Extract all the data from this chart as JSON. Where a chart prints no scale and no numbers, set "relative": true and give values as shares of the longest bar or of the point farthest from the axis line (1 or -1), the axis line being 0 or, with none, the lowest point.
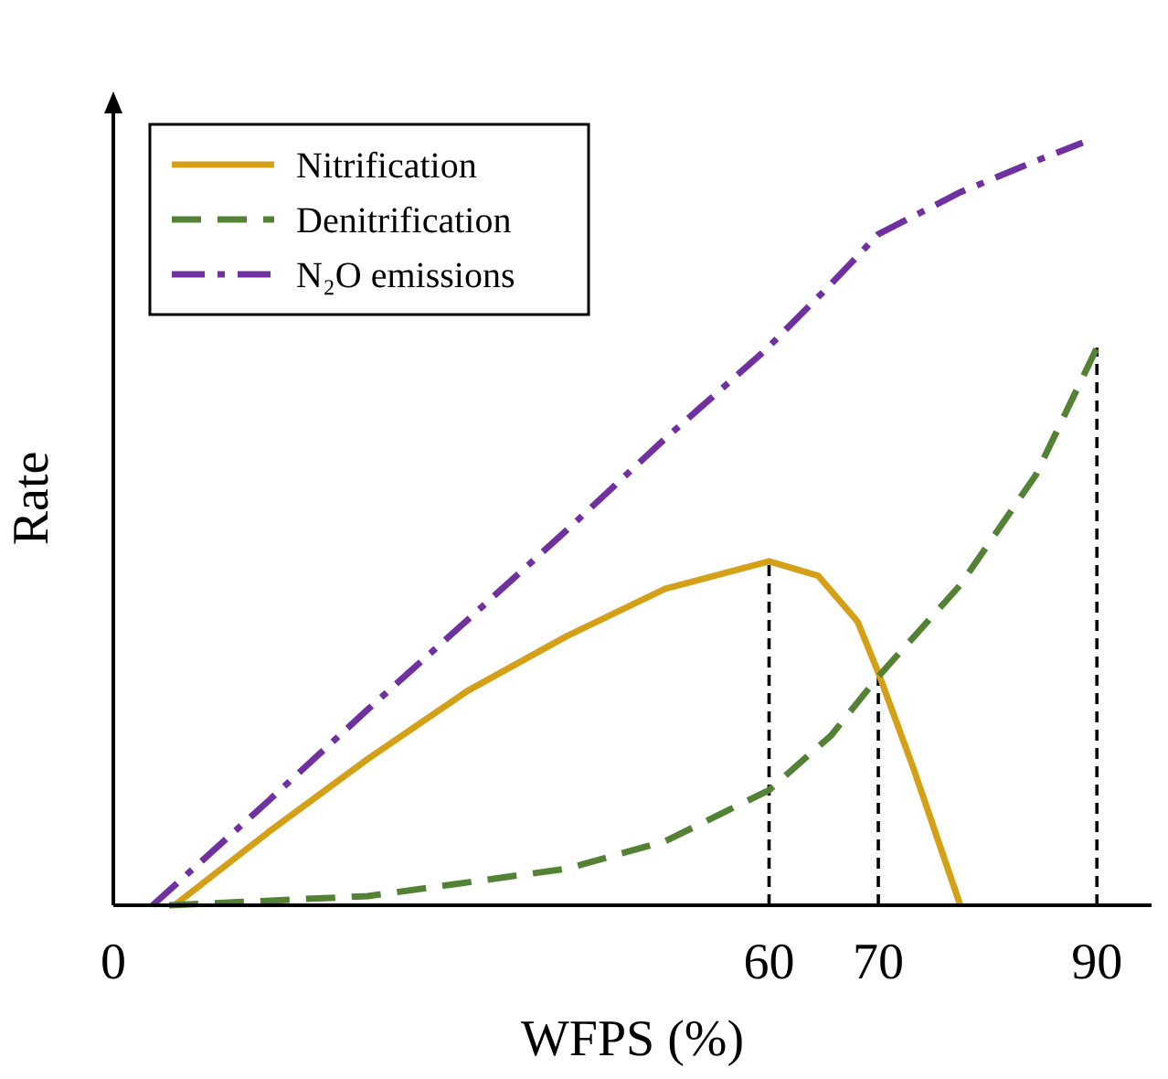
{
  "chart_data": {
    "type": "line",
    "xlabel": "WFPS (%)",
    "ylabel": "Rate",
    "relative": true,
    "xlim": [
      0,
      95
    ],
    "xticks": [
      0,
      60,
      70,
      90
    ],
    "legend": "top left",
    "grid": false,
    "series": [
      {
        "name": "Nitrification",
        "color": "#d4a017",
        "line_style": "solid",
        "x": [
          5.6,
          14.2,
          23.3,
          32.4,
          41.5,
          50.5,
          60,
          64.5,
          68.1,
          70,
          73.2,
          77.5
        ],
        "values": [
          0,
          0.096,
          0.192,
          0.281,
          0.353,
          0.415,
          0.451,
          0.432,
          0.372,
          0.305,
          0.18,
          0
        ]
      },
      {
        "name": "Denitrification",
        "color": "#548235",
        "line_style": "dashed",
        "x": [
          5.1,
          23.3,
          41.5,
          50.5,
          60,
          65.7,
          70,
          77.5,
          84.4,
          90
        ],
        "values": [
          0,
          0.012,
          0.048,
          0.084,
          0.151,
          0.223,
          0.3,
          0.42,
          0.564,
          0.731
        ]
      },
      {
        "name": "N₂O emissions",
        "color": "#7030a0",
        "line_style": "dashdot",
        "x": [
          3.6,
          14.2,
          23.3,
          32.4,
          41.5,
          50.5,
          59.6,
          65.7,
          70,
          77.5,
          84.4,
          88.7
        ],
        "values": [
          0,
          0.137,
          0.257,
          0.374,
          0.492,
          0.612,
          0.727,
          0.815,
          0.88,
          0.935,
          0.976,
          1
        ]
      }
    ],
    "ref_lines": [
      {
        "axis": "x",
        "value": 60,
        "color": "#000000",
        "line_style": "dashed"
      },
      {
        "axis": "x",
        "value": 70,
        "color": "#000000",
        "line_style": "dashed"
      },
      {
        "axis": "x",
        "value": 90,
        "color": "#000000",
        "line_style": "dashed"
      }
    ]
  }
}
